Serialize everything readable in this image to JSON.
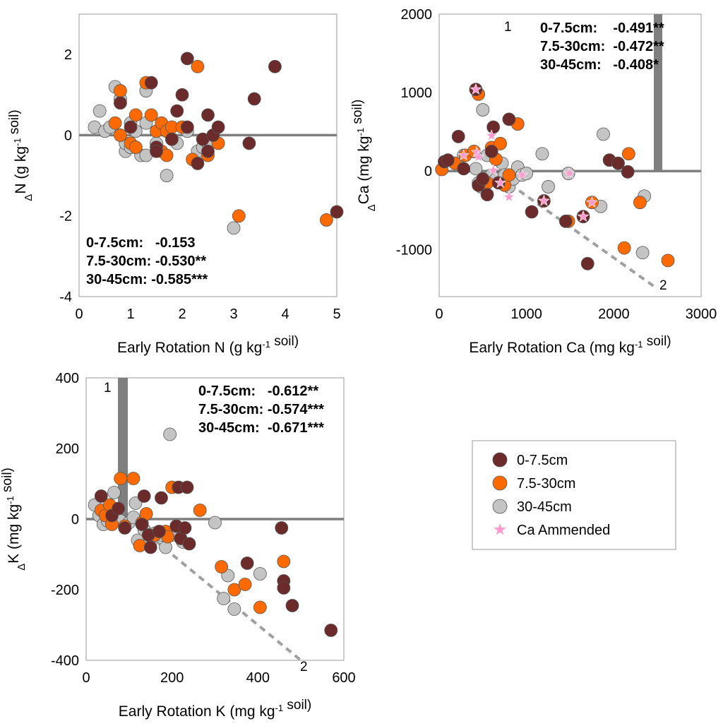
{
  "colors": {
    "s0": "#6b2b2b",
    "s1": "#ff6a00",
    "s2": "#c4c4c4",
    "star": "#ff9ccf",
    "refline": "#7f7f7f"
  },
  "legend": {
    "items": [
      {
        "label": "0-7.5cm",
        "kind": "circle",
        "color": "#6b2b2b"
      },
      {
        "label": "7.5-30cm",
        "kind": "circle",
        "color": "#ff6a00"
      },
      {
        "label": "30-45cm",
        "kind": "circle",
        "color": "#c4c4c4"
      },
      {
        "label": "Ca Ammended",
        "kind": "star",
        "color": "#ff9ccf"
      }
    ]
  },
  "chart_data": [
    {
      "id": "N",
      "type": "scatter",
      "xlabel": "Early Rotation N",
      "xlabel_unit": "(g kg",
      "xlabel_sup": "-1",
      "xlabel_tail": " soil)",
      "ylabel_prefix": "Δ",
      "ylabel_main": "N (g kg",
      "ylabel_sup": "-1",
      "ylabel_tail": " soil)",
      "xlim": [
        0,
        5
      ],
      "ylim": [
        -4,
        3
      ],
      "xticks": [
        0,
        1,
        2,
        3,
        4,
        5
      ],
      "yticks": [
        -4,
        -2,
        0,
        2
      ],
      "annotations": [
        "0-7.5cm:   -0.153",
        "7.5-30cm: -0.530**",
        "30-45cm: -0.585***"
      ],
      "series": [
        {
          "name": "30-45cm",
          "points": [
            [
              0.3,
              0.2
            ],
            [
              0.4,
              0.6
            ],
            [
              0.5,
              0.1
            ],
            [
              0.6,
              0.2
            ],
            [
              0.7,
              1.2
            ],
            [
              0.8,
              0.9
            ],
            [
              0.9,
              -0.4
            ],
            [
              0.9,
              -0.2
            ],
            [
              1.0,
              -0.3
            ],
            [
              1.0,
              0.3
            ],
            [
              1.1,
              0.1
            ],
            [
              1.2,
              -0.5
            ],
            [
              1.3,
              1.1
            ],
            [
              1.3,
              0.3
            ],
            [
              1.3,
              -0.5
            ],
            [
              1.5,
              -0.2
            ],
            [
              1.7,
              -1.0
            ],
            [
              1.8,
              -0.1
            ],
            [
              1.9,
              -0.2
            ],
            [
              2.1,
              0.1
            ],
            [
              2.3,
              -0.4
            ],
            [
              2.4,
              -0.3
            ],
            [
              2.5,
              -0.2
            ],
            [
              3.0,
              -2.3
            ]
          ]
        },
        {
          "name": "7.5-30cm",
          "points": [
            [
              0.7,
              0.3
            ],
            [
              0.8,
              1.1
            ],
            [
              0.8,
              0.0
            ],
            [
              1.0,
              -0.2
            ],
            [
              1.1,
              -0.3
            ],
            [
              1.1,
              0.5
            ],
            [
              1.3,
              1.3
            ],
            [
              1.4,
              0.5
            ],
            [
              1.5,
              0.1
            ],
            [
              1.6,
              0.3
            ],
            [
              1.6,
              -0.4
            ],
            [
              1.7,
              -0.5
            ],
            [
              1.7,
              0.1
            ],
            [
              1.8,
              0.2
            ],
            [
              2.0,
              0.2
            ],
            [
              2.2,
              -0.6
            ],
            [
              2.3,
              1.7
            ],
            [
              2.5,
              -0.5
            ],
            [
              2.7,
              -0.2
            ],
            [
              3.1,
              -2.0
            ],
            [
              4.8,
              -2.1
            ]
          ]
        },
        {
          "name": "0-7.5cm",
          "points": [
            [
              0.8,
              0.8
            ],
            [
              1.0,
              0.2
            ],
            [
              1.4,
              1.3
            ],
            [
              1.5,
              -0.3
            ],
            [
              1.5,
              -0.4
            ],
            [
              1.8,
              -0.1
            ],
            [
              1.9,
              0.6
            ],
            [
              2.0,
              1.0
            ],
            [
              2.1,
              1.9
            ],
            [
              2.1,
              0.2
            ],
            [
              2.3,
              -0.7
            ],
            [
              2.4,
              -0.1
            ],
            [
              2.5,
              0.5
            ],
            [
              2.5,
              -0.4
            ],
            [
              2.6,
              0.0
            ],
            [
              2.7,
              0.2
            ],
            [
              3.3,
              -0.2
            ],
            [
              3.4,
              0.9
            ],
            [
              3.8,
              1.7
            ],
            [
              5.0,
              -1.9
            ]
          ]
        }
      ]
    },
    {
      "id": "Ca",
      "type": "scatter",
      "xlabel": "Early Rotation Ca",
      "xlabel_unit": "(mg kg",
      "xlabel_sup": "-1",
      "xlabel_tail": " soil)",
      "ylabel_prefix": "Δ",
      "ylabel_main": "Ca (mg kg",
      "ylabel_sup": "-1",
      "ylabel_tail": " soil)",
      "xlim": [
        0,
        3000
      ],
      "ylim": [
        -1600,
        2000
      ],
      "xticks": [
        0,
        1000,
        2000,
        3000
      ],
      "yticks": [
        -1000,
        0,
        1000,
        2000
      ],
      "annotations": [
        "0-7.5cm:    -0.491**",
        "7.5-30cm:  -0.472**",
        "30-45cm:   -0.408*"
      ],
      "line_labels": [
        "1",
        "2"
      ],
      "series": [
        {
          "name": "30-45cm",
          "points": [
            [
              280,
              200
            ],
            [
              420,
              30
            ],
            [
              450,
              -150
            ],
            [
              480,
              -200
            ],
            [
              500,
              780
            ],
            [
              550,
              200
            ],
            [
              600,
              -50
            ],
            [
              650,
              -100
            ],
            [
              720,
              100
            ],
            [
              750,
              -50
            ],
            [
              800,
              -200
            ],
            [
              850,
              -100
            ],
            [
              900,
              50
            ],
            [
              950,
              -50
            ],
            [
              1000,
              -30
            ],
            [
              1180,
              220
            ],
            [
              1250,
              -200
            ],
            [
              1480,
              -30
            ],
            [
              1850,
              -450
            ],
            [
              1880,
              470
            ],
            [
              2350,
              -320
            ],
            [
              2330,
              -1040
            ]
          ]
        },
        {
          "name": "7.5-30cm",
          "points": [
            [
              30,
              20
            ],
            [
              180,
              100
            ],
            [
              300,
              200
            ],
            [
              400,
              250
            ],
            [
              450,
              980
            ],
            [
              500,
              -180
            ],
            [
              550,
              -150
            ],
            [
              600,
              300
            ],
            [
              650,
              150
            ],
            [
              700,
              350
            ],
            [
              750,
              -180
            ],
            [
              800,
              -50
            ],
            [
              900,
              600
            ],
            [
              1480,
              -640
            ],
            [
              1750,
              -400
            ],
            [
              2120,
              -980
            ],
            [
              2170,
              220
            ],
            [
              2300,
              -400
            ],
            [
              2620,
              -1140
            ]
          ]
        },
        {
          "name": "0-7.5cm",
          "points": [
            [
              60,
              120
            ],
            [
              100,
              140
            ],
            [
              220,
              440
            ],
            [
              280,
              30
            ],
            [
              420,
              1040
            ],
            [
              450,
              -180
            ],
            [
              500,
              -100
            ],
            [
              550,
              -300
            ],
            [
              600,
              250
            ],
            [
              620,
              560
            ],
            [
              680,
              -150
            ],
            [
              800,
              660
            ],
            [
              1060,
              -520
            ],
            [
              1200,
              -380
            ],
            [
              1450,
              -640
            ],
            [
              1650,
              -580
            ],
            [
              1700,
              -1180
            ],
            [
              1950,
              140
            ],
            [
              2050,
              100
            ],
            [
              2160,
              -10
            ]
          ]
        },
        {
          "name": "Ca Ammended",
          "points": [
            [
              280,
              200
            ],
            [
              420,
              1040
            ],
            [
              430,
              240
            ],
            [
              450,
              180
            ],
            [
              600,
              450
            ],
            [
              620,
              10
            ],
            [
              700,
              -150
            ],
            [
              800,
              -330
            ],
            [
              1200,
              -380
            ],
            [
              1490,
              -30
            ],
            [
              1650,
              -580
            ],
            [
              1750,
              -400
            ],
            [
              950,
              -50
            ]
          ]
        }
      ]
    },
    {
      "id": "K",
      "type": "scatter",
      "xlabel": "Early Rotation K",
      "xlabel_unit": "(mg kg",
      "xlabel_sup": "-1",
      "xlabel_tail": " soil)",
      "ylabel_prefix": "Δ",
      "ylabel_main": "K (mg kg",
      "ylabel_sup": "-1",
      "ylabel_tail": " soil)",
      "xlim": [
        0,
        600
      ],
      "ylim": [
        -400,
        400
      ],
      "xticks": [
        0,
        200,
        400,
        600
      ],
      "yticks": [
        -400,
        -200,
        0,
        200,
        400
      ],
      "annotations": [
        "0-7.5cm:   -0.612**",
        "7.5-30cm: -0.574***",
        "30-45cm:  -0.671***"
      ],
      "line_labels": [
        "1",
        "2"
      ],
      "series": [
        {
          "name": "30-45cm",
          "points": [
            [
              20,
              40
            ],
            [
              30,
              10
            ],
            [
              40,
              -15
            ],
            [
              50,
              -5
            ],
            [
              60,
              -10
            ],
            [
              65,
              75
            ],
            [
              80,
              -5
            ],
            [
              100,
              -10
            ],
            [
              110,
              5
            ],
            [
              115,
              45
            ],
            [
              120,
              -60
            ],
            [
              135,
              -30
            ],
            [
              150,
              -50
            ],
            [
              160,
              -40
            ],
            [
              175,
              -45
            ],
            [
              185,
              -80
            ],
            [
              195,
              240
            ],
            [
              200,
              -45
            ],
            [
              225,
              -65
            ],
            [
              300,
              -10
            ],
            [
              320,
              -225
            ],
            [
              330,
              -160
            ],
            [
              345,
              -255
            ],
            [
              405,
              -155
            ]
          ]
        },
        {
          "name": "7.5-30cm",
          "points": [
            [
              35,
              25
            ],
            [
              45,
              10
            ],
            [
              55,
              40
            ],
            [
              60,
              -15
            ],
            [
              80,
              115
            ],
            [
              90,
              -20
            ],
            [
              110,
              115
            ],
            [
              125,
              -75
            ],
            [
              130,
              -10
            ],
            [
              140,
              15
            ],
            [
              160,
              -45
            ],
            [
              185,
              -35
            ],
            [
              190,
              -50
            ],
            [
              200,
              90
            ],
            [
              265,
              25
            ],
            [
              315,
              -135
            ],
            [
              345,
              -200
            ],
            [
              370,
              -185
            ],
            [
              405,
              -250
            ],
            [
              460,
              -120
            ]
          ]
        },
        {
          "name": "0-7.5cm",
          "points": [
            [
              35,
              65
            ],
            [
              60,
              10
            ],
            [
              75,
              30
            ],
            [
              90,
              -25
            ],
            [
              130,
              -15
            ],
            [
              135,
              65
            ],
            [
              145,
              -45
            ],
            [
              150,
              -80
            ],
            [
              170,
              -35
            ],
            [
              175,
              60
            ],
            [
              210,
              -20
            ],
            [
              215,
              90
            ],
            [
              220,
              -55
            ],
            [
              230,
              -25
            ],
            [
              235,
              90
            ],
            [
              240,
              -70
            ],
            [
              375,
              -125
            ],
            [
              455,
              -25
            ],
            [
              460,
              -175
            ],
            [
              460,
              -195
            ],
            [
              480,
              -245
            ],
            [
              570,
              -315
            ]
          ]
        }
      ]
    }
  ]
}
